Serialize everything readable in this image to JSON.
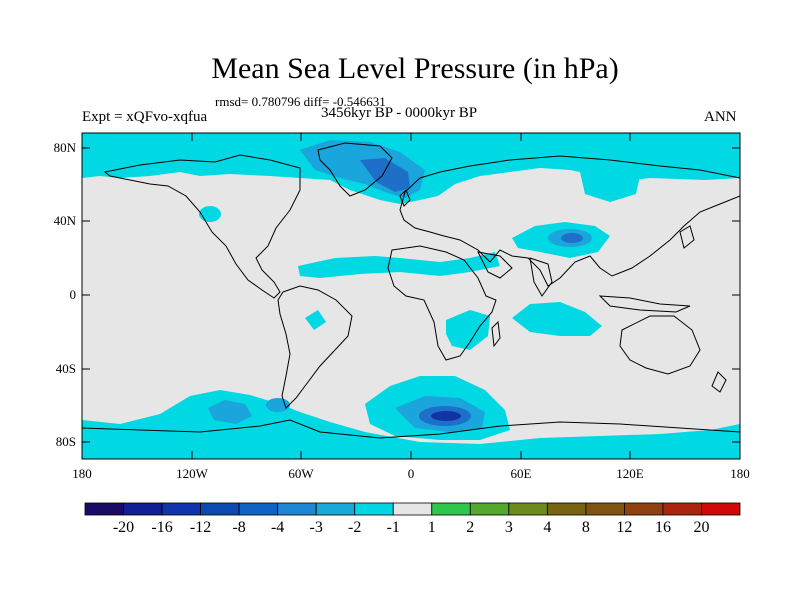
{
  "title": "Mean Sea Level Pressure (in hPa)",
  "stats_text": "rmsd= 0.780796 diff= -0.546631",
  "experiment_text": "Expt = xQFvo-xqfua",
  "period_text": "3456kyr BP - 0000kyr BP",
  "season_text": "ANN",
  "colors": {
    "background": "#e6e6e6",
    "coast": "#000000",
    "anom_light": "#00d9e3",
    "anom_mid": "#1aa5dc",
    "anom_strong": "#1e6fc8",
    "anom_deep": "#1033a6"
  },
  "map": {
    "lat_labels": [
      "80N",
      "40N",
      "0",
      "40S",
      "80S"
    ],
    "lon_labels": [
      "180",
      "120W",
      "60W",
      "0",
      "60E",
      "120E",
      "180"
    ]
  },
  "colorbar": {
    "colors": [
      "#1a0c64",
      "#141e96",
      "#0f34ad",
      "#0c49b3",
      "#1062c7",
      "#1c86d4",
      "#16aad6",
      "#00d6e4",
      "#e6e6e6",
      "#2dc84b",
      "#54a82e",
      "#6e8a1e",
      "#776514",
      "#7e5411",
      "#904010",
      "#ac2410",
      "#d00808"
    ],
    "labels": [
      "-20",
      "-16",
      "-12",
      "-8",
      "-4",
      "-3",
      "-2",
      "-1",
      "1",
      "2",
      "3",
      "4",
      "8",
      "12",
      "16",
      "20"
    ]
  }
}
